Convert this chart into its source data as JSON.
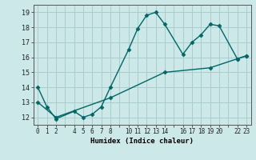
{
  "xlabel": "Humidex (Indice chaleur)",
  "ylabel": "",
  "background_color": "#cce8e8",
  "grid_color": "#aacccc",
  "line_color": "#006666",
  "xlim": [
    -0.5,
    23.5
  ],
  "ylim": [
    11.5,
    19.5
  ],
  "xticks_major": [
    0,
    1,
    2,
    4,
    5,
    6,
    7,
    8,
    10,
    11,
    12,
    13,
    14,
    16,
    17,
    18,
    19,
    20,
    22,
    23
  ],
  "xtick_labels": [
    "0",
    "1",
    "2",
    "",
    "4",
    "5",
    "6",
    "7",
    "8",
    "",
    "10",
    "11",
    "12",
    "13",
    "14",
    "",
    "16",
    "17",
    "18",
    "19",
    "20",
    "",
    "22",
    "23"
  ],
  "yticks": [
    12,
    13,
    14,
    15,
    16,
    17,
    18,
    19
  ],
  "line1_x": [
    0,
    1,
    2,
    4,
    5,
    6,
    7,
    8,
    10,
    11,
    12,
    13,
    14,
    16,
    17,
    18,
    19,
    20,
    22,
    23
  ],
  "line1_y": [
    14.0,
    12.7,
    11.9,
    12.4,
    12.0,
    12.2,
    12.7,
    14.0,
    16.5,
    17.9,
    18.8,
    19.0,
    18.2,
    16.2,
    17.0,
    17.5,
    18.2,
    18.1,
    15.9,
    16.1
  ],
  "line2_x": [
    0,
    2,
    8,
    14,
    19,
    22,
    23
  ],
  "line2_y": [
    13.0,
    12.0,
    13.3,
    15.0,
    15.3,
    15.9,
    16.1
  ]
}
